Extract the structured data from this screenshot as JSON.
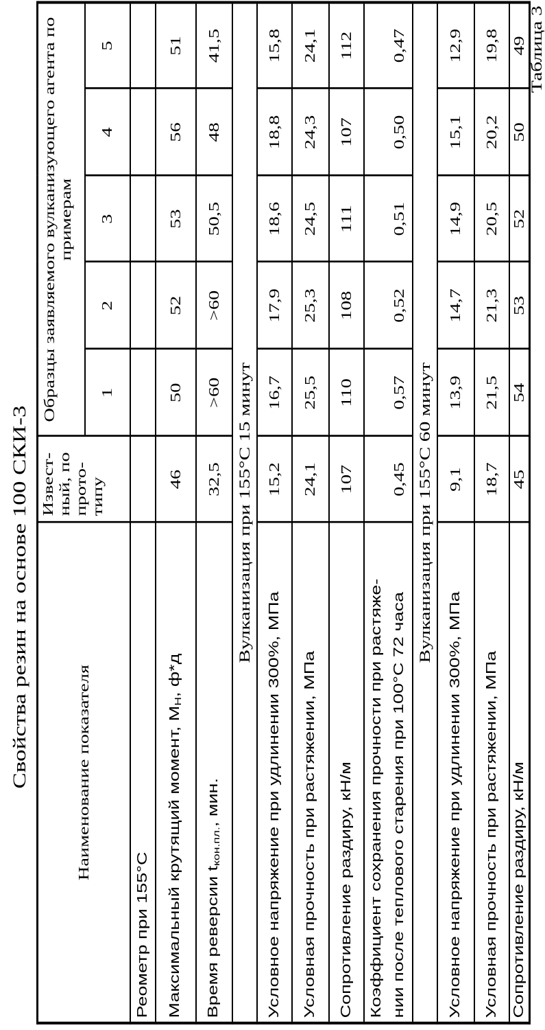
{
  "table_number": "Таблица 3",
  "title": "Свойства резин на основе 100 СКИ-3",
  "header": {
    "indicator": "Наименование показателя",
    "prototype_lines": [
      "Извест-",
      "ный, по",
      "прото-",
      "типу"
    ],
    "samples_lines": [
      "Образцы заявляемого вулканизующего агента по",
      "примерам"
    ],
    "sample_numbers": [
      "1",
      "2",
      "3",
      "4",
      "5"
    ]
  },
  "rows": [
    {
      "type": "data",
      "label": "Реометр при 155°С",
      "values": [
        "",
        "",
        "",
        "",
        "",
        ""
      ]
    },
    {
      "type": "data",
      "label": "Максимальный крутящий момент, М",
      "label_sub": "Н",
      "label_suffix": ", ф*д",
      "values": [
        "46",
        "50",
        "52",
        "53",
        "56",
        "51"
      ]
    },
    {
      "type": "data",
      "label": "Время реверсии t",
      "label_sub": "кон.пл.",
      "label_suffix": ", мин.",
      "values": [
        "32,5",
        ">60",
        ">60",
        "50,5",
        "48",
        "41,5"
      ]
    },
    {
      "type": "section",
      "label": "Вулканизация при 155°C 15 минут"
    },
    {
      "type": "data",
      "label": "Условное напряжение при удлинении 300%, МПа",
      "values": [
        "15,2",
        "16,7",
        "17,9",
        "18,6",
        "18,8",
        "15,8"
      ]
    },
    {
      "type": "data",
      "label": "Условная прочность при растяжении, МПа",
      "values": [
        "24,1",
        "25,5",
        "25,3",
        "24,5",
        "24,3",
        "24,1"
      ]
    },
    {
      "type": "data",
      "label": "Сопротивление раздиру, кН/м",
      "values": [
        "107",
        "110",
        "108",
        "111",
        "107",
        "112"
      ]
    },
    {
      "type": "data",
      "label": "Коэффициент сохранения прочности при растяже-",
      "label_line2": "нии после теплового старения при 100°С 72 часа",
      "values": [
        "0,45",
        "0,57",
        "0,52",
        "0,51",
        "0,50",
        "0,47"
      ]
    },
    {
      "type": "section",
      "label": "Вулканизация при 155°C 60 минут"
    },
    {
      "type": "data",
      "label": "Условное напряжение при удлинении 300%, МПа",
      "values": [
        "9,1",
        "13,9",
        "14,7",
        "14,9",
        "15,1",
        "12,9"
      ]
    },
    {
      "type": "data",
      "label": "Условная прочность при растяжении, МПа",
      "values": [
        "18,7",
        "21,5",
        "21,3",
        "20,5",
        "20,2",
        "19,8"
      ]
    },
    {
      "type": "data",
      "label": "Сопротивление раздиру, кН/м",
      "values": [
        "45",
        "54",
        "53",
        "52",
        "50",
        "49"
      ]
    }
  ]
}
